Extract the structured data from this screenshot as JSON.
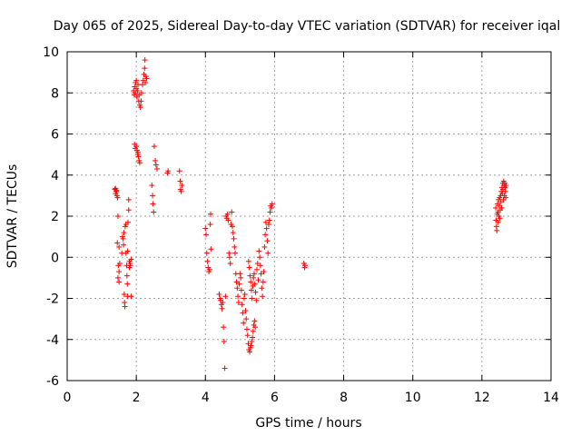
{
  "chart_data": {
    "type": "scatter",
    "title": "Day 065 of 2025, Sidereal Day-to-day VTEC variation (SDTVAR) for receiver iqal",
    "xlabel": "GPS time / hours",
    "ylabel": "SDTVAR / TECUs",
    "xlim": [
      0,
      14
    ],
    "ylim": [
      -6,
      10
    ],
    "xticks": [
      0,
      2,
      4,
      6,
      8,
      10,
      12,
      14
    ],
    "yticks": [
      -6,
      -4,
      -2,
      0,
      2,
      4,
      6,
      8,
      10
    ],
    "grid": true,
    "marker": "+",
    "color": "#ff0000",
    "series": [
      {
        "name": "SDTVAR",
        "points": [
          [
            1.38,
            3.3
          ],
          [
            1.4,
            3.1
          ],
          [
            1.42,
            3.2
          ],
          [
            1.44,
            3.0
          ],
          [
            1.46,
            2.9
          ],
          [
            1.4,
            3.35
          ],
          [
            1.43,
            3.25
          ],
          [
            1.45,
            0.7
          ],
          [
            1.47,
            2.0
          ],
          [
            1.48,
            -0.4
          ],
          [
            1.5,
            -0.7
          ],
          [
            1.47,
            -1.0
          ],
          [
            1.5,
            -1.2
          ],
          [
            1.52,
            -0.3
          ],
          [
            1.5,
            0.5
          ],
          [
            1.58,
            0.2
          ],
          [
            1.6,
            1.0
          ],
          [
            1.62,
            0.9
          ],
          [
            1.63,
            0.6
          ],
          [
            1.64,
            1.2
          ],
          [
            1.65,
            -1.8
          ],
          [
            1.66,
            -2.2
          ],
          [
            1.67,
            -2.4
          ],
          [
            1.68,
            1.5
          ],
          [
            1.7,
            1.6
          ],
          [
            1.7,
            0.2
          ],
          [
            1.72,
            -0.4
          ],
          [
            1.73,
            -0.9
          ],
          [
            1.74,
            -1.3
          ],
          [
            1.75,
            -1.9
          ],
          [
            1.76,
            1.7
          ],
          [
            1.78,
            2.3
          ],
          [
            1.78,
            2.8
          ],
          [
            1.8,
            -0.2
          ],
          [
            1.8,
            -0.5
          ],
          [
            1.82,
            -0.3
          ],
          [
            1.83,
            -0.4
          ],
          [
            1.85,
            -1.9
          ],
          [
            1.85,
            -0.1
          ],
          [
            1.75,
            0.3
          ],
          [
            1.92,
            8.1
          ],
          [
            1.94,
            7.9
          ],
          [
            1.95,
            8.3
          ],
          [
            1.97,
            8.0
          ],
          [
            1.98,
            8.5
          ],
          [
            2.0,
            8.6
          ],
          [
            2.0,
            8.2
          ],
          [
            2.02,
            7.8
          ],
          [
            2.04,
            8.1
          ],
          [
            2.05,
            8.4
          ],
          [
            2.07,
            7.6
          ],
          [
            2.08,
            7.9
          ],
          [
            2.1,
            7.4
          ],
          [
            2.12,
            7.3
          ],
          [
            2.14,
            7.6
          ],
          [
            2.15,
            8.0
          ],
          [
            2.18,
            8.4
          ],
          [
            2.2,
            8.6
          ],
          [
            2.22,
            8.9
          ],
          [
            2.24,
            9.2
          ],
          [
            2.25,
            9.6
          ],
          [
            2.26,
            8.5
          ],
          [
            2.28,
            8.8
          ],
          [
            2.3,
            8.7
          ],
          [
            1.95,
            5.5
          ],
          [
            1.97,
            5.3
          ],
          [
            2.0,
            5.4
          ],
          [
            2.02,
            5.2
          ],
          [
            2.04,
            5.0
          ],
          [
            2.06,
            4.9
          ],
          [
            2.08,
            4.7
          ],
          [
            2.1,
            4.6
          ],
          [
            2.05,
            5.1
          ],
          [
            2.45,
            3.5
          ],
          [
            2.47,
            3.0
          ],
          [
            2.48,
            2.6
          ],
          [
            2.5,
            2.2
          ],
          [
            2.52,
            5.4
          ],
          [
            2.55,
            4.7
          ],
          [
            2.57,
            4.5
          ],
          [
            2.6,
            4.3
          ],
          [
            2.9,
            4.1
          ],
          [
            2.92,
            4.2
          ],
          [
            3.25,
            4.2
          ],
          [
            3.27,
            3.7
          ],
          [
            3.28,
            3.3
          ],
          [
            3.3,
            3.2
          ],
          [
            3.32,
            3.5
          ],
          [
            4.0,
            1.4
          ],
          [
            4.02,
            1.1
          ],
          [
            4.04,
            0.2
          ],
          [
            4.06,
            -0.2
          ],
          [
            4.08,
            -0.5
          ],
          [
            4.1,
            -0.7
          ],
          [
            4.12,
            -0.6
          ],
          [
            4.14,
            1.6
          ],
          [
            4.15,
            2.1
          ],
          [
            4.16,
            0.4
          ],
          [
            4.4,
            -1.8
          ],
          [
            4.42,
            -2.0
          ],
          [
            4.44,
            -2.1
          ],
          [
            4.46,
            -2.3
          ],
          [
            4.48,
            -2.5
          ],
          [
            4.5,
            -2.2
          ],
          [
            4.52,
            -3.4
          ],
          [
            4.54,
            -4.1
          ],
          [
            4.56,
            -5.4
          ],
          [
            4.58,
            -1.9
          ],
          [
            4.6,
            2.0
          ],
          [
            4.62,
            1.9
          ],
          [
            4.64,
            2.1
          ],
          [
            4.66,
            1.8
          ],
          [
            4.68,
            0.2
          ],
          [
            4.7,
            0.0
          ],
          [
            4.72,
            -0.3
          ],
          [
            4.74,
            1.6
          ],
          [
            4.76,
            2.2
          ],
          [
            4.78,
            1.5
          ],
          [
            4.8,
            1.2
          ],
          [
            4.82,
            0.9
          ],
          [
            4.84,
            0.5
          ],
          [
            4.86,
            0.2
          ],
          [
            4.88,
            -0.8
          ],
          [
            4.9,
            -1.2
          ],
          [
            4.92,
            -1.5
          ],
          [
            4.94,
            -1.9
          ],
          [
            4.96,
            -2.2
          ],
          [
            4.98,
            -1.3
          ],
          [
            5.0,
            -0.8
          ],
          [
            5.02,
            -1.0
          ],
          [
            5.04,
            -1.6
          ],
          [
            5.06,
            -2.3
          ],
          [
            5.08,
            -2.7
          ],
          [
            5.1,
            -3.2
          ],
          [
            5.12,
            -2.0
          ],
          [
            5.14,
            -1.8
          ],
          [
            5.16,
            -2.6
          ],
          [
            5.18,
            -3.0
          ],
          [
            5.2,
            -3.5
          ],
          [
            5.22,
            -3.8
          ],
          [
            5.24,
            -4.2
          ],
          [
            5.26,
            -4.5
          ],
          [
            5.28,
            -4.6
          ],
          [
            5.3,
            -4.4
          ],
          [
            5.32,
            -4.3
          ],
          [
            5.34,
            -4.1
          ],
          [
            5.36,
            -3.9
          ],
          [
            5.38,
            -3.6
          ],
          [
            5.4,
            -3.3
          ],
          [
            5.42,
            -3.1
          ],
          [
            5.44,
            -3.4
          ],
          [
            5.25,
            -0.2
          ],
          [
            5.27,
            -0.5
          ],
          [
            5.29,
            -0.9
          ],
          [
            5.31,
            -1.2
          ],
          [
            5.33,
            -1.6
          ],
          [
            5.35,
            -2.0
          ],
          [
            5.37,
            -1.4
          ],
          [
            5.39,
            -1.0
          ],
          [
            5.41,
            -0.8
          ],
          [
            5.43,
            -1.3
          ],
          [
            5.45,
            -1.7
          ],
          [
            5.47,
            -2.1
          ],
          [
            5.49,
            -0.6
          ],
          [
            5.51,
            -0.3
          ],
          [
            5.53,
            -1.1
          ],
          [
            5.55,
            0.3
          ],
          [
            5.57,
            0.0
          ],
          [
            5.59,
            -0.4
          ],
          [
            5.61,
            -0.8
          ],
          [
            5.63,
            -1.5
          ],
          [
            5.65,
            -1.9
          ],
          [
            5.67,
            -1.2
          ],
          [
            5.69,
            -0.7
          ],
          [
            5.71,
            0.5
          ],
          [
            5.73,
            1.1
          ],
          [
            5.75,
            1.7
          ],
          [
            5.77,
            1.4
          ],
          [
            5.79,
            0.8
          ],
          [
            5.81,
            0.2
          ],
          [
            5.83,
            1.6
          ],
          [
            5.85,
            1.8
          ],
          [
            5.87,
            2.2
          ],
          [
            5.89,
            2.5
          ],
          [
            5.91,
            2.4
          ],
          [
            5.93,
            2.6
          ],
          [
            6.85,
            -0.3
          ],
          [
            6.87,
            -0.5
          ],
          [
            6.88,
            -0.4
          ],
          [
            12.4,
            2.4
          ],
          [
            12.41,
            1.8
          ],
          [
            12.42,
            1.5
          ],
          [
            12.43,
            1.3
          ],
          [
            12.44,
            2.1
          ],
          [
            12.45,
            2.6
          ],
          [
            12.46,
            2.2
          ],
          [
            12.47,
            1.7
          ],
          [
            12.48,
            2.8
          ],
          [
            12.49,
            2.0
          ],
          [
            12.5,
            2.5
          ],
          [
            12.51,
            2.9
          ],
          [
            12.52,
            1.9
          ],
          [
            12.53,
            2.3
          ],
          [
            12.54,
            3.0
          ],
          [
            12.55,
            2.7
          ],
          [
            12.56,
            3.2
          ],
          [
            12.57,
            2.4
          ],
          [
            12.58,
            3.4
          ],
          [
            12.59,
            3.1
          ],
          [
            12.6,
            3.6
          ],
          [
            12.61,
            3.3
          ],
          [
            12.62,
            2.8
          ],
          [
            12.63,
            3.7
          ],
          [
            12.64,
            3.5
          ],
          [
            12.65,
            3.0
          ],
          [
            12.66,
            3.6
          ],
          [
            12.67,
            3.4
          ],
          [
            12.68,
            3.2
          ],
          [
            12.69,
            2.9
          ],
          [
            12.7,
            3.5
          ]
        ]
      }
    ]
  }
}
